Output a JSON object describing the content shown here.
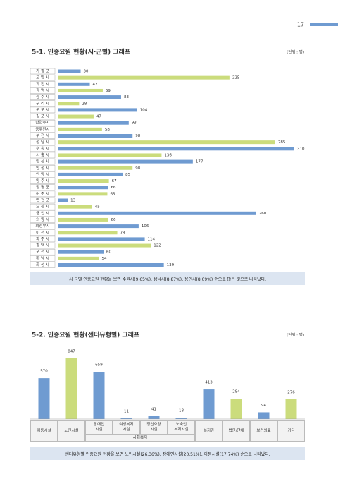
{
  "page_number": "17",
  "chart_data": [
    {
      "type": "bar",
      "orientation": "horizontal",
      "title": "5-1. 인증요원 현황(시·군별) 그래프",
      "unit": "(단위 : 명)",
      "note": "시·군별 인증요원 현황을 보면 수원시(9.65%), 성남시(8.87%), 용인시(8.09%) 순으로 많은 것으로 나타났다.",
      "categories": [
        "가 평 군",
        "고 양 시",
        "과 천 시",
        "광 명 시",
        "광 주 시",
        "구 리 시",
        "군 포 시",
        "김 포 시",
        "남양주시",
        "동두천시",
        "부 천 시",
        "성 남 시",
        "수 원 시",
        "시 흥 시",
        "안 산 시",
        "안 성 시",
        "안 양 시",
        "양 주 시",
        "양 평 군",
        "여 주 시",
        "연 천 군",
        "오 산 시",
        "용 인 시",
        "의 왕 시",
        "의정부시",
        "이 천 시",
        "파 주 시",
        "평 택 시",
        "포 천 시",
        "하 남 시",
        "화 성 시"
      ],
      "values": [
        30,
        225,
        42,
        59,
        83,
        28,
        104,
        47,
        93,
        58,
        98,
        285,
        310,
        136,
        177,
        98,
        85,
        67,
        66,
        65,
        13,
        45,
        260,
        66,
        106,
        78,
        114,
        122,
        60,
        54,
        139
      ],
      "colors": [
        "#6f9bd1",
        "#cbdc7c",
        "#6f9bd1",
        "#cbdc7c",
        "#6f9bd1",
        "#cbdc7c",
        "#6f9bd1",
        "#cbdc7c",
        "#6f9bd1",
        "#cbdc7c",
        "#6f9bd1",
        "#cbdc7c",
        "#6f9bd1",
        "#cbdc7c",
        "#6f9bd1",
        "#cbdc7c",
        "#6f9bd1",
        "#cbdc7c",
        "#6f9bd1",
        "#cbdc7c",
        "#6f9bd1",
        "#cbdc7c",
        "#6f9bd1",
        "#cbdc7c",
        "#6f9bd1",
        "#cbdc7c",
        "#6f9bd1",
        "#cbdc7c",
        "#6f9bd1",
        "#cbdc7c",
        "#6f9bd1"
      ]
    },
    {
      "type": "bar",
      "orientation": "vertical",
      "title": "5-2. 인증요원 현황(센터유형별) 그래프",
      "unit": "(단위 : 명)",
      "note": "센터유형별 인증요원 현황을 보면 노인시설(26.36%), 장애인시설(20.51%), 아동시설(17.74%) 순으로 나타났다.",
      "categories": [
        "아동시설",
        "노인시설",
        "장애인\n시설",
        "여성복지\n시설",
        "정신요양\n시설",
        "노숙인\n복지시설",
        "복지관",
        "법인/단체",
        "보건의료",
        "기타"
      ],
      "values": [
        570,
        847,
        659,
        11,
        41,
        18,
        413,
        284,
        94,
        276
      ],
      "colors": [
        "#6f9bd1",
        "#cbdc7c",
        "#6f9bd1",
        "#6f9bd1",
        "#6f9bd1",
        "#6f9bd1",
        "#6f9bd1",
        "#cbdc7c",
        "#6f9bd1",
        "#cbdc7c"
      ],
      "group": {
        "label": "사회복지",
        "from": 2,
        "to": 5
      }
    }
  ]
}
